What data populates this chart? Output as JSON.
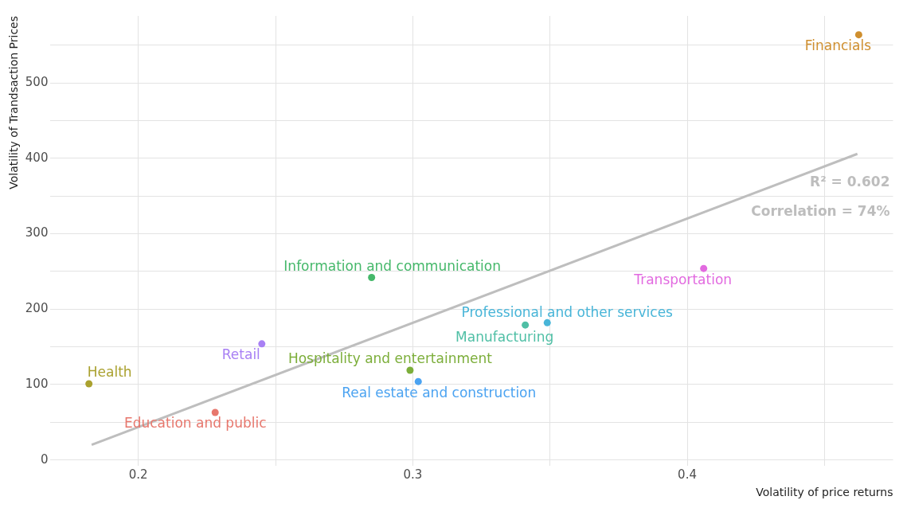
{
  "chart_data": {
    "type": "scatter",
    "xlabel": "Volatility of price returns",
    "ylabel": "Volatility of Trandsaction Prices",
    "xlim": [
      0.168,
      0.475
    ],
    "ylim": [
      -8,
      589
    ],
    "xticks": [
      0.2,
      {
        "value": 0.25,
        "label": null
      },
      0.3,
      {
        "value": 0.35,
        "label": null
      },
      0.4,
      {
        "value": 0.45,
        "label": null
      }
    ],
    "yticks": [
      0,
      {
        "value": 50,
        "label": null
      },
      100,
      {
        "value": 150,
        "label": null
      },
      200,
      {
        "value": 250,
        "label": null
      },
      300,
      {
        "value": 350,
        "label": null
      },
      400,
      {
        "value": 450,
        "label": null
      },
      500,
      {
        "value": 550,
        "label": null
      }
    ],
    "grid": true,
    "legend": false,
    "marker": "circle",
    "annotations": [
      "R² = 0.602",
      "Correlation = 74%"
    ],
    "series": [
      {
        "name": "Financials",
        "color": "#cf8f2f",
        "x": [
          0.4625
        ],
        "values": [
          564
        ]
      },
      {
        "name": "Health",
        "color": "#aaa12f",
        "x": [
          0.182
        ],
        "values": [
          101
        ]
      },
      {
        "name": "Education and public",
        "color": "#e7776d",
        "x": [
          0.228
        ],
        "values": [
          63
        ]
      },
      {
        "name": "Retail",
        "color": "#a880f4",
        "x": [
          0.245
        ],
        "values": [
          154
        ]
      },
      {
        "name": "Information and communication",
        "color": "#45b86a",
        "x": [
          0.285
        ],
        "values": [
          242
        ]
      },
      {
        "name": "Hospitality and entertainment",
        "color": "#7cae3a",
        "x": [
          0.299
        ],
        "values": [
          119
        ]
      },
      {
        "name": "Real estate and construction",
        "color": "#4ba3f1",
        "x": [
          0.302
        ],
        "values": [
          104
        ]
      },
      {
        "name": "Manufacturing",
        "color": "#4fbfa5",
        "x": [
          0.341
        ],
        "values": [
          179
        ]
      },
      {
        "name": "Professional and other services",
        "color": "#48b5d8",
        "x": [
          0.349
        ],
        "values": [
          182
        ]
      },
      {
        "name": "Transportation",
        "color": "#e26ae0",
        "x": [
          0.406
        ],
        "values": [
          254
        ]
      },
      {
        "type": "line",
        "color": "#bebebe",
        "x": [
          0.183,
          0.462
        ],
        "values": [
          20,
          406
        ],
        "marker": "none"
      }
    ]
  }
}
